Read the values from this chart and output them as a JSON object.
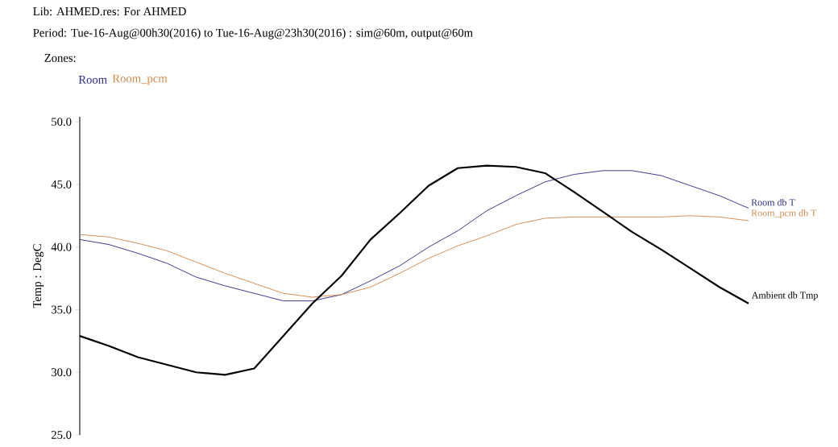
{
  "chart_data": {
    "type": "line",
    "title": "Lib: AHMED.res: For AHMED",
    "subtitle": "Period: Tue-16-Aug@00h30(2016) to Tue-16-Aug@23h30(2016) : sim@60m, output@60m",
    "ylabel": "Temp : DegC",
    "annotations": [
      "Zones:",
      "Room",
      "Room_pcm"
    ],
    "categories": [
      null,
      null,
      null,
      null,
      null,
      null,
      null,
      null,
      null,
      null,
      null,
      null,
      null,
      null,
      null,
      null,
      null,
      null,
      null,
      null,
      null,
      null,
      null,
      null
    ],
    "tick_labels": "y",
    "ylim": [
      25,
      50.4
    ],
    "yticks": [
      {
        "value": 25,
        "label": "25.0"
      },
      {
        "value": 30,
        "label": "30.0"
      },
      {
        "value": 35,
        "label": "35.0"
      },
      {
        "value": 40,
        "label": "40.0"
      },
      {
        "value": 45,
        "label": "45.0"
      },
      {
        "value": 50,
        "label": "50.0"
      }
    ],
    "series": [
      {
        "name": "Room db T",
        "color": "#2e2e8c",
        "values": [
          40.6,
          40.2,
          39.5,
          38.7,
          37.6,
          36.9,
          36.3,
          35.7,
          35.7,
          36.2,
          37.3,
          38.5,
          40.0,
          41.3,
          42.9,
          44.1,
          45.2,
          45.8,
          46.1,
          46.1,
          45.7,
          44.9,
          44.1,
          43.1
        ]
      },
      {
        "name": "Room_pcm db T",
        "color": "#d4884a",
        "values": [
          41.0,
          40.8,
          40.3,
          39.7,
          38.8,
          37.9,
          37.1,
          36.3,
          36.0,
          36.2,
          36.8,
          37.9,
          39.1,
          40.1,
          40.9,
          41.8,
          42.3,
          42.4,
          42.4,
          42.4,
          42.4,
          42.5,
          42.4,
          42.1
        ]
      },
      {
        "name": "Ambient db Tmp",
        "color": "#000000",
        "values": [
          32.9,
          32.1,
          31.2,
          30.6,
          30.0,
          29.8,
          30.3,
          32.9,
          35.5,
          37.7,
          40.6,
          42.7,
          44.9,
          46.3,
          46.5,
          46.4,
          45.9,
          44.4,
          42.8,
          41.2,
          39.8,
          38.3,
          36.8,
          35.5
        ]
      }
    ]
  }
}
